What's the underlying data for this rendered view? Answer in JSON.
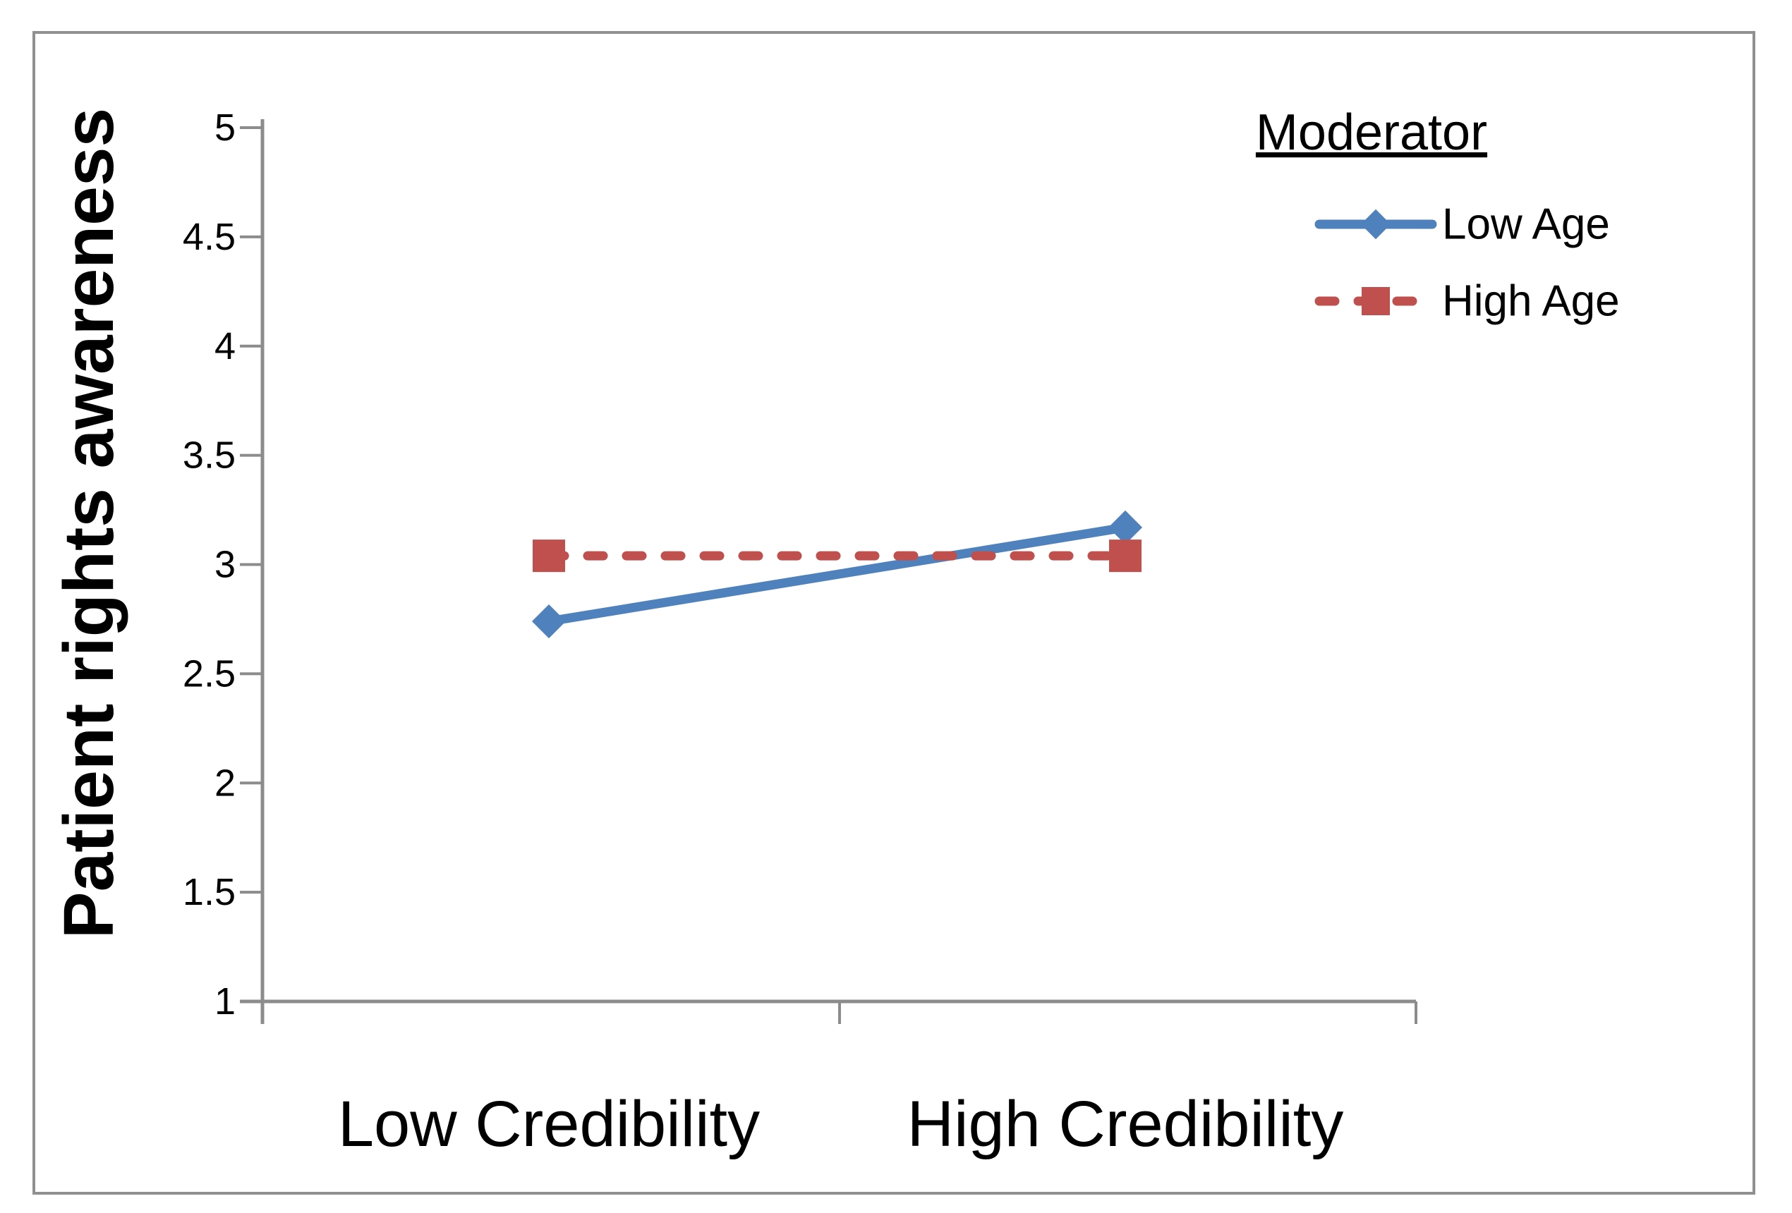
{
  "chart_data": {
    "type": "line",
    "title": "",
    "ylabel": "Patient rights awareness",
    "xlabel": "",
    "categories": [
      "Low Credibility",
      "High Credibility"
    ],
    "series": [
      {
        "name": "Low Age",
        "values": [
          2.74,
          3.17
        ],
        "color": "#4F81BD",
        "marker": "diamond",
        "line_style": "solid"
      },
      {
        "name": "High Age",
        "values": [
          3.04,
          3.04
        ],
        "color": "#C0504D",
        "marker": "square",
        "line_style": "dashed"
      }
    ],
    "ylim": [
      1,
      5
    ],
    "ytick_labels": [
      "1",
      "1.5",
      "2",
      "2.5",
      "3",
      "3.5",
      "4",
      "4.5",
      "5"
    ],
    "legend": {
      "title": "Moderator",
      "position": "top-right"
    },
    "grid": false,
    "colors": {
      "axis": "#8C8C8C",
      "frame": "#909090",
      "text": "#000000"
    }
  }
}
